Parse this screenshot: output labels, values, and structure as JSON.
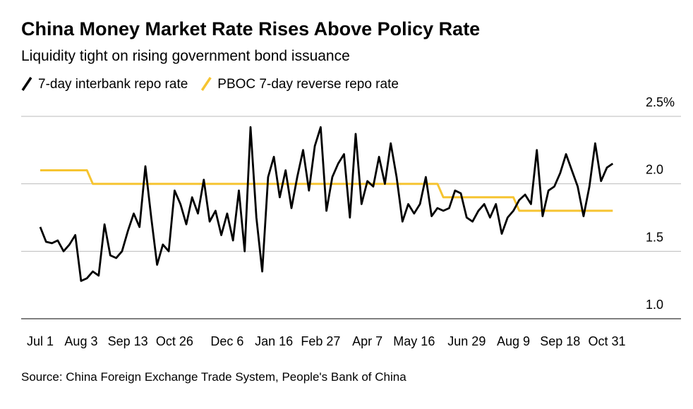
{
  "chart_data": {
    "type": "line",
    "title": "China Money Market Rate Rises Above Policy Rate",
    "subtitle": "Liquidity tight on rising government bond issuance",
    "source": "Source: China Foreign Exchange Trade System, People's Bank of China",
    "categories": [
      "Jul 1",
      null,
      null,
      null,
      null,
      null,
      null,
      "Aug 3",
      null,
      null,
      null,
      null,
      null,
      null,
      null,
      "Sep 13",
      null,
      null,
      null,
      null,
      null,
      null,
      null,
      "Oct 26",
      null,
      null,
      null,
      null,
      null,
      null,
      null,
      null,
      "Dec 6",
      null,
      null,
      null,
      null,
      null,
      null,
      null,
      "Jan 16",
      null,
      null,
      null,
      null,
      null,
      null,
      null,
      "Feb 27",
      null,
      null,
      null,
      null,
      null,
      null,
      null,
      "Apr 7",
      null,
      null,
      null,
      null,
      null,
      null,
      null,
      "May 16",
      null,
      null,
      null,
      null,
      null,
      null,
      null,
      null,
      "Jun 29",
      null,
      null,
      null,
      null,
      null,
      null,
      null,
      "Aug 9",
      null,
      null,
      null,
      null,
      null,
      null,
      null,
      "Sep 18",
      null,
      null,
      null,
      null,
      null,
      null,
      null,
      "Oct 31",
      null
    ],
    "series": [
      {
        "name": "7-day interbank repo rate",
        "color": "#000000",
        "values": [
          1.68,
          1.57,
          1.56,
          1.58,
          1.5,
          1.55,
          1.62,
          1.28,
          1.3,
          1.35,
          1.32,
          1.7,
          1.47,
          1.45,
          1.5,
          1.65,
          1.78,
          1.68,
          2.13,
          1.75,
          1.4,
          1.55,
          1.5,
          1.95,
          1.85,
          1.7,
          1.9,
          1.78,
          2.03,
          1.72,
          1.8,
          1.62,
          1.78,
          1.58,
          1.95,
          1.5,
          2.42,
          1.75,
          1.35,
          2.05,
          2.2,
          1.9,
          2.1,
          1.82,
          2.05,
          2.25,
          1.95,
          2.28,
          2.42,
          1.8,
          2.05,
          2.15,
          2.22,
          1.75,
          2.37,
          1.85,
          2.02,
          1.98,
          2.2,
          2.0,
          2.3,
          2.05,
          1.72,
          1.85,
          1.78,
          1.85,
          2.05,
          1.76,
          1.82,
          1.8,
          1.82,
          1.95,
          1.93,
          1.75,
          1.72,
          1.8,
          1.85,
          1.75,
          1.85,
          1.63,
          1.75,
          1.8,
          1.88,
          1.92,
          1.85,
          2.25,
          1.76,
          1.95,
          1.98,
          2.08,
          2.22,
          2.1,
          1.98,
          1.76,
          1.98,
          2.3,
          2.02,
          2.12,
          2.15
        ]
      },
      {
        "name": "PBOC 7-day reverse repo rate",
        "color": "#f6c431",
        "values": [
          2.1,
          2.1,
          2.1,
          2.1,
          2.1,
          2.1,
          2.1,
          2.1,
          2.1,
          2,
          2,
          2,
          2,
          2,
          2,
          2,
          2,
          2,
          2,
          2,
          2,
          2,
          2,
          2,
          2,
          2,
          2,
          2,
          2,
          2,
          2,
          2,
          2,
          2,
          2,
          2,
          2,
          2,
          2,
          2,
          2,
          2,
          2,
          2,
          2,
          2,
          2,
          2,
          2,
          2,
          2,
          2,
          2,
          2,
          2,
          2,
          2,
          2,
          2,
          2,
          2,
          2,
          2,
          2,
          2,
          2,
          2,
          2,
          2,
          1.9,
          1.9,
          1.9,
          1.9,
          1.9,
          1.9,
          1.9,
          1.9,
          1.9,
          1.9,
          1.9,
          1.9,
          1.9,
          1.8,
          1.8,
          1.8,
          1.8,
          1.8,
          1.8,
          1.8,
          1.8,
          1.8,
          1.8,
          1.8,
          1.8,
          1.8,
          1.8,
          1.8,
          1.8,
          1.8
        ]
      }
    ],
    "ylim": [
      1.0,
      2.5
    ],
    "yticks": [
      {
        "value": 1.0,
        "label": "1.0"
      },
      1.5,
      {
        "value": 2.0,
        "label": "2.0"
      },
      {
        "value": 2.5,
        "label": "2.5%"
      }
    ],
    "grid": true
  }
}
